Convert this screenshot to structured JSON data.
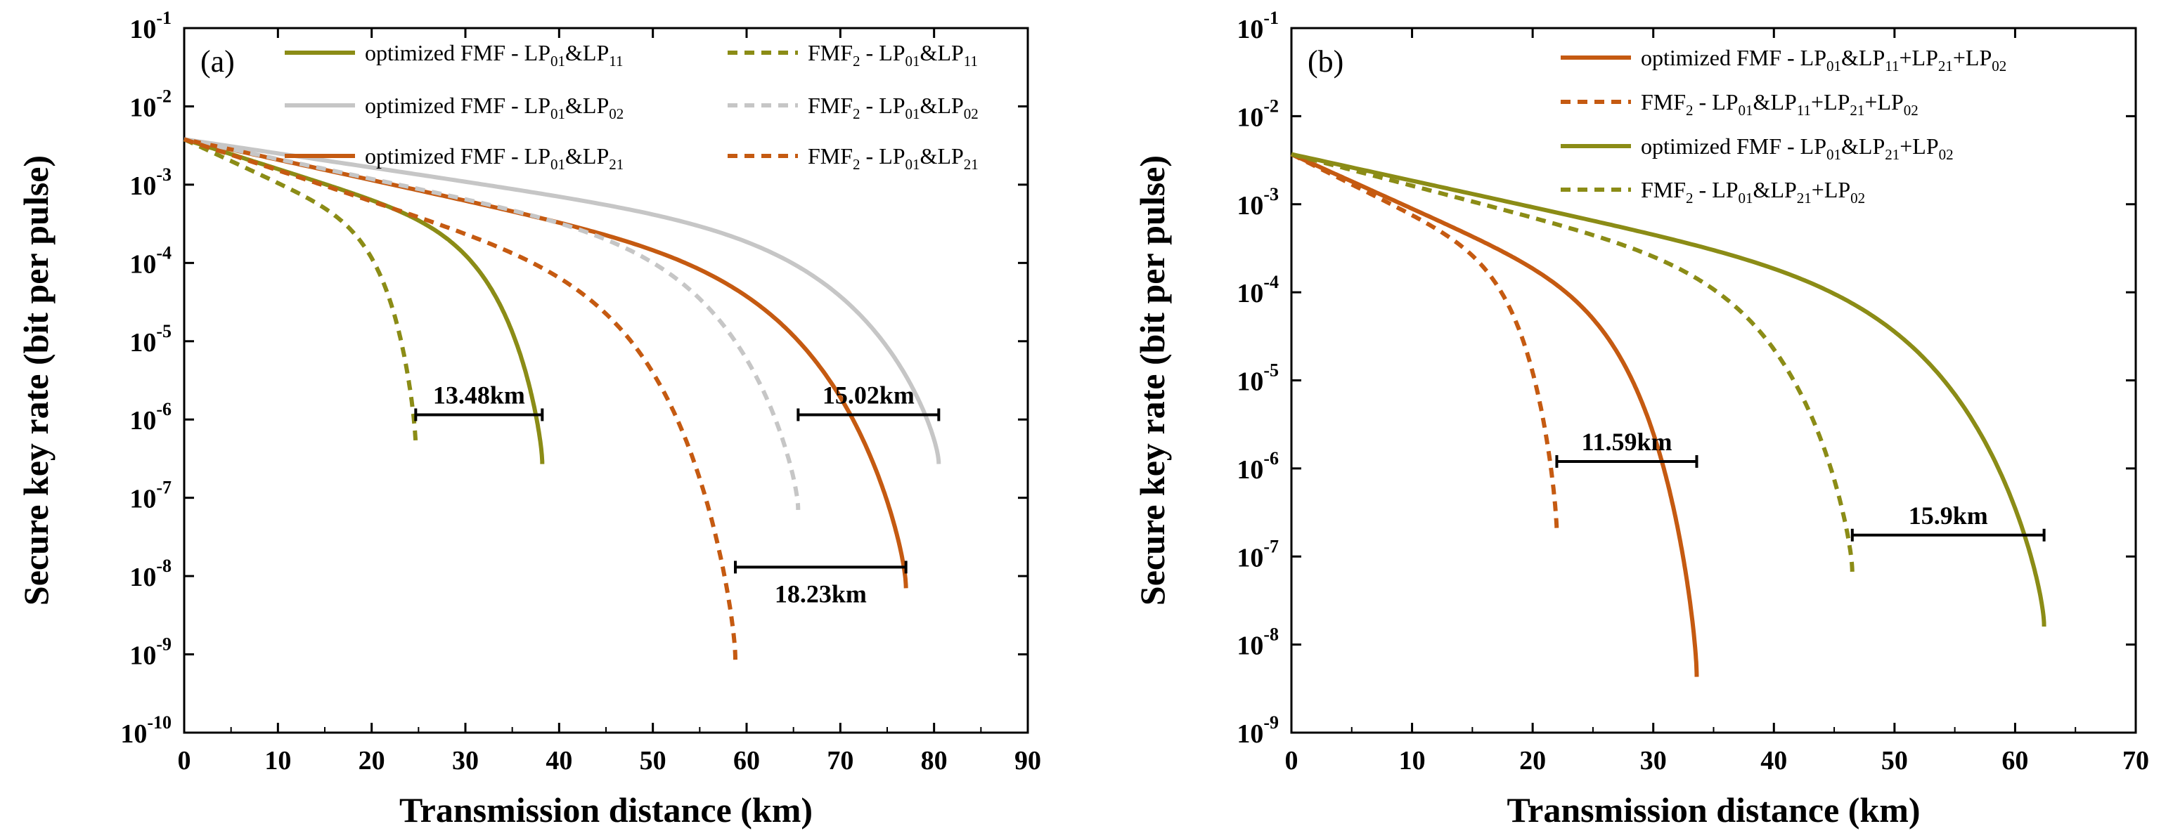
{
  "chart_data": [
    {
      "type": "line",
      "panel_label": "(a)",
      "xlabel": "Transmission distance (km)",
      "ylabel": "Secure key rate (bit per pulse)",
      "xlim": [
        0,
        90
      ],
      "xticks": [
        0,
        10,
        20,
        30,
        40,
        50,
        60,
        70,
        80,
        90
      ],
      "ylim_log10": [
        -10,
        -1
      ],
      "yticks_exp": [
        -10,
        -9,
        -8,
        -7,
        -6,
        -5,
        -4,
        -3,
        -2,
        -1
      ],
      "ytick_base": "10",
      "legend_position": "top",
      "y0": 0.0038,
      "series": [
        {
          "name": "optimized FMF - LP01&LP11",
          "legend": {
            "pre": "optimized FMF - LP",
            "s1": "01",
            "mid": "&LP",
            "s2": "11",
            "post": ""
          },
          "color": "#8b8c16",
          "dash": "solid",
          "end_x": 38.2,
          "end_y": 2.7e-07
        },
        {
          "name": "optimized FMF - LP01&LP02",
          "legend": {
            "pre": "optimized FMF - LP",
            "s1": "01",
            "mid": "&LP",
            "s2": "02",
            "post": ""
          },
          "color": "#c6c6c6",
          "dash": "solid",
          "end_x": 80.5,
          "end_y": 2.7e-07
        },
        {
          "name": "optimized FMF - LP01&LP21",
          "legend": {
            "pre": "optimized FMF - LP",
            "s1": "01",
            "mid": "&LP",
            "s2": "21",
            "post": ""
          },
          "color": "#c55a11",
          "dash": "solid",
          "end_x": 77.0,
          "end_y": 7e-09
        },
        {
          "name": "FMF2 - LP01&LP11",
          "legend": {
            "pre": "FMF",
            "s0": "2",
            "pre2": " - LP",
            "s1": "01",
            "mid": "&LP",
            "s2": "11",
            "post": ""
          },
          "color": "#8b8c16",
          "dash": "dashed",
          "end_x": 24.7,
          "end_y": 4.5e-07
        },
        {
          "name": "FMF2 - LP01&LP02",
          "legend": {
            "pre": "FMF",
            "s0": "2",
            "pre2": " - LP",
            "s1": "01",
            "mid": "&LP",
            "s2": "02",
            "post": ""
          },
          "color": "#c6c6c6",
          "dash": "dashed",
          "end_x": 65.5,
          "end_y": 7e-08
        },
        {
          "name": "FMF2 - LP01&LP21",
          "legend": {
            "pre": "FMF",
            "s0": "2",
            "pre2": " - LP",
            "s1": "01",
            "mid": "&LP",
            "s2": "21",
            "post": ""
          },
          "color": "#c55a11",
          "dash": "dashed",
          "end_x": 58.8,
          "end_y": 8.5e-10
        }
      ],
      "annotations": [
        {
          "text": "13.48km",
          "x1": 24.7,
          "x2": 38.2,
          "y": 1.15e-06,
          "label_side": "above"
        },
        {
          "text": "15.02km",
          "x1": 65.5,
          "x2": 80.5,
          "y": 1.15e-06,
          "label_side": "above"
        },
        {
          "text": "18.23km",
          "x1": 58.8,
          "x2": 77.0,
          "y": 1.3e-08,
          "label_side": "below"
        }
      ]
    },
    {
      "type": "line",
      "panel_label": "(b)",
      "xlabel": "Transmission distance (km)",
      "ylabel": "Secure key rate (bit per pulse)",
      "xlim": [
        0,
        70
      ],
      "xticks": [
        0,
        10,
        20,
        30,
        40,
        50,
        60,
        70
      ],
      "ylim_log10": [
        -9,
        -1
      ],
      "yticks_exp": [
        -9,
        -8,
        -7,
        -6,
        -5,
        -4,
        -3,
        -2,
        -1
      ],
      "ytick_base": "10",
      "legend_position": "top-right",
      "y0": 0.0037,
      "series": [
        {
          "name": "optimized FMF - LP01&LP11+LP21+LP02",
          "legend": {
            "pre": "optimized FMF - LP",
            "s1": "01",
            "mid": "&LP",
            "s2": "11",
            "mid2": "+LP",
            "s3": "21",
            "mid3": "+LP",
            "s4": "02"
          },
          "color": "#c55a11",
          "dash": "solid",
          "end_x": 33.6,
          "end_y": 4.3e-09
        },
        {
          "name": "FMF2 - LP01&LP11+LP21+LP02",
          "legend": {
            "pre": "FMF",
            "s0": "2",
            "pre2": " - LP",
            "s1": "01",
            "mid": "&LP",
            "s2": "11",
            "mid2": "+LP",
            "s3": "21",
            "mid3": "+LP",
            "s4": "02"
          },
          "color": "#c55a11",
          "dash": "dashed",
          "end_x": 22.0,
          "end_y": 1.8e-07
        },
        {
          "name": "optimized FMF - LP01&LP21+LP02",
          "legend": {
            "pre": "optimized FMF - LP",
            "s1": "01",
            "mid": "&LP",
            "s2": "21",
            "mid2": "+LP",
            "s3": "02"
          },
          "color": "#8b8c16",
          "dash": "solid",
          "end_x": 62.4,
          "end_y": 1.6e-08
        },
        {
          "name": "FMF2 - LP01&LP21+LP02",
          "legend": {
            "pre": "FMF",
            "s0": "2",
            "pre2": " - LP",
            "s1": "01",
            "mid": "&LP",
            "s2": "21",
            "mid2": "+LP",
            "s3": "02"
          },
          "color": "#8b8c16",
          "dash": "dashed",
          "end_x": 46.5,
          "end_y": 6.5e-08
        }
      ],
      "annotations": [
        {
          "text": "11.59km",
          "x1": 22.0,
          "x2": 33.6,
          "y": 1.2e-06,
          "label_side": "above"
        },
        {
          "text": "15.9km",
          "x1": 46.5,
          "x2": 62.4,
          "y": 1.75e-07,
          "label_side": "above"
        }
      ]
    }
  ]
}
